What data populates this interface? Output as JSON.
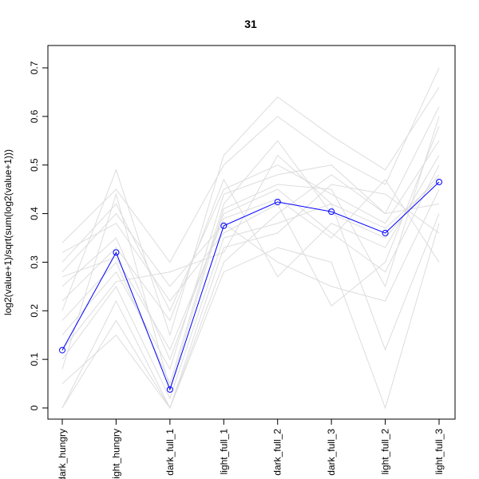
{
  "chart_data": {
    "type": "line",
    "title": "31",
    "y_label": "log2(value+1)/sqrt(sum(log2(value+1)))",
    "categories": [
      "dark_hungry",
      "light_hungry",
      "dark_full_1",
      "light_full_1",
      "dark_full_2",
      "dark_full_3",
      "light_full_2",
      "light_full_3"
    ],
    "ylim": [
      -0.023,
      0.746
    ],
    "yticks": [
      0,
      0.1,
      0.2,
      0.3,
      0.4,
      0.5,
      0.6,
      0.7
    ],
    "series": [
      {
        "color": "#dddddd",
        "values": [
          0.3,
          0.42,
          0.2,
          0.45,
          0.5,
          0.44,
          0.38,
          0.55
        ]
      },
      {
        "color": "#dddddd",
        "values": [
          0.0,
          0.22,
          0.0,
          0.3,
          0.4,
          0.48,
          0.4,
          0.62
        ]
      },
      {
        "color": "#dddddd",
        "values": [
          0.25,
          0.35,
          0.1,
          0.4,
          0.45,
          0.36,
          0.28,
          0.5
        ]
      },
      {
        "color": "#dddddd",
        "values": [
          0.34,
          0.45,
          0.3,
          0.5,
          0.6,
          0.52,
          0.46,
          0.7
        ]
      },
      {
        "color": "#dddddd",
        "values": [
          0.1,
          0.25,
          0.02,
          0.35,
          0.38,
          0.42,
          0.12,
          0.4
        ]
      },
      {
        "color": "#dddddd",
        "values": [
          0.18,
          0.3,
          0.05,
          0.42,
          0.55,
          0.4,
          0.35,
          0.48
        ]
      },
      {
        "color": "#dddddd",
        "values": [
          0.05,
          0.15,
          0.0,
          0.28,
          0.33,
          0.3,
          0.0,
          0.38
        ]
      },
      {
        "color": "#dddddd",
        "values": [
          0.28,
          0.4,
          0.25,
          0.38,
          0.3,
          0.25,
          0.22,
          0.45
        ]
      },
      {
        "color": "#dddddd",
        "values": [
          0.2,
          0.49,
          0.15,
          0.52,
          0.64,
          0.56,
          0.49,
          0.66
        ]
      },
      {
        "color": "#dddddd",
        "values": [
          0.0,
          0.18,
          0.0,
          0.33,
          0.36,
          0.46,
          0.44,
          0.36
        ]
      },
      {
        "color": "#dddddd",
        "values": [
          0.32,
          0.38,
          0.22,
          0.36,
          0.42,
          0.21,
          0.3,
          0.58
        ]
      },
      {
        "color": "#dddddd",
        "values": [
          0.15,
          0.28,
          0.08,
          0.44,
          0.48,
          0.5,
          0.4,
          0.42
        ]
      },
      {
        "color": "#dddddd",
        "values": [
          0.22,
          0.33,
          0.18,
          0.47,
          0.27,
          0.38,
          0.33,
          0.52
        ]
      },
      {
        "color": "#dddddd",
        "values": [
          0.08,
          0.44,
          0.04,
          0.41,
          0.46,
          0.45,
          0.25,
          0.6
        ]
      },
      {
        "color": "#dddddd",
        "values": [
          0.27,
          0.31,
          0.12,
          0.39,
          0.43,
          0.35,
          0.47,
          0.3
        ]
      },
      {
        "color": "#dddddd",
        "values": [
          0.12,
          0.26,
          0.28,
          0.32,
          0.52,
          0.42,
          0.37,
          0.47
        ]
      },
      {
        "color": "#0000ff",
        "marker": "circle",
        "values": [
          0.119,
          0.32,
          0.038,
          0.375,
          0.424,
          0.404,
          0.36,
          0.465
        ]
      }
    ]
  }
}
